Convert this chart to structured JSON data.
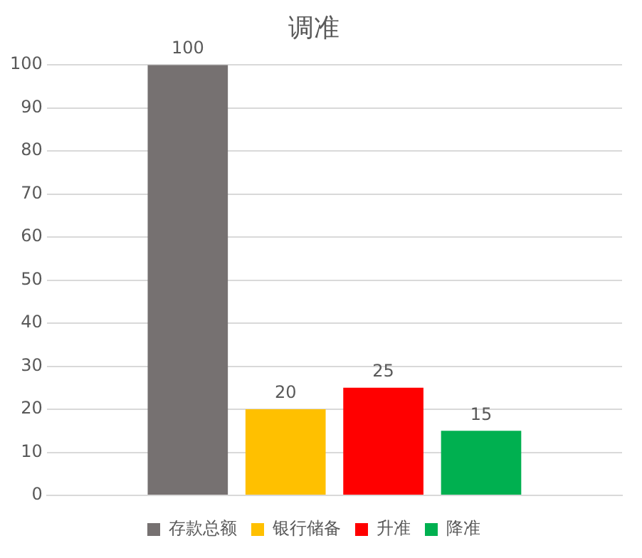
{
  "chart_data": {
    "type": "bar",
    "title": "调准",
    "categories": [
      null
    ],
    "series": [
      {
        "name": "存款总额",
        "color": "#767171",
        "values": [
          100
        ]
      },
      {
        "name": "银行储备",
        "color": "#ffc000",
        "values": [
          20
        ]
      },
      {
        "name": "升准",
        "color": "#ff0000",
        "values": [
          25
        ]
      },
      {
        "name": "降准",
        "color": "#00b050",
        "values": [
          15
        ]
      }
    ],
    "ylim": [
      0,
      100
    ],
    "yticks": [
      0,
      10,
      20,
      30,
      40,
      50,
      60,
      70,
      80,
      90,
      100
    ],
    "grid": "y",
    "legend": "bottom",
    "data_labels": true,
    "tick_labels": "y"
  }
}
